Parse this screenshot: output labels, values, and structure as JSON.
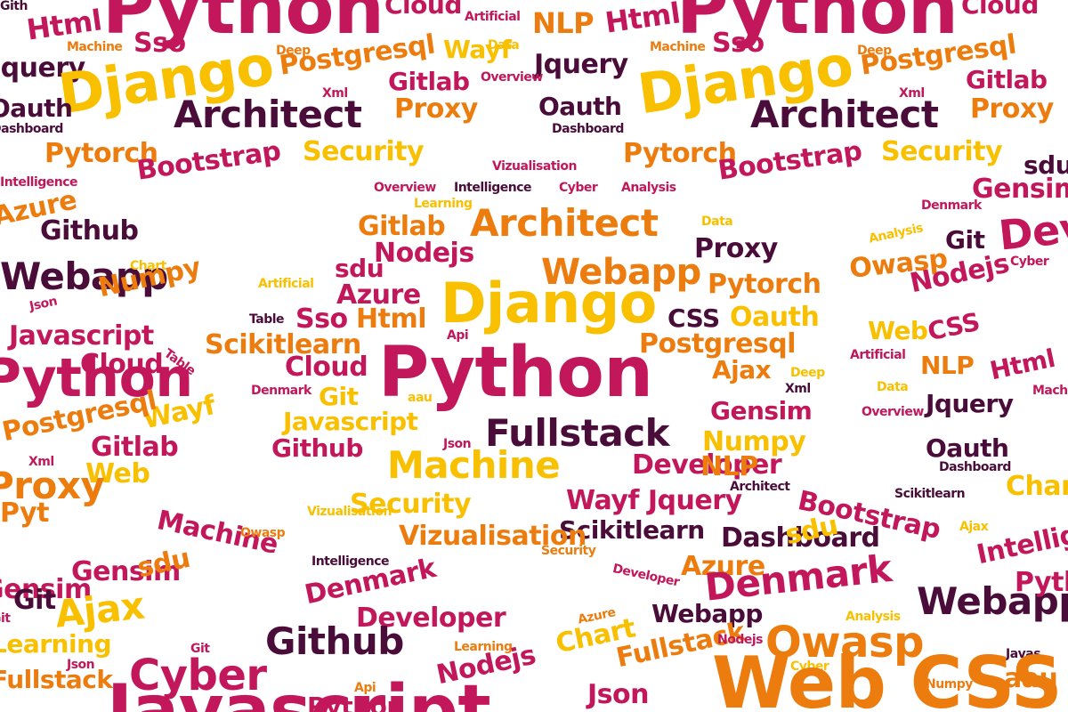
{
  "palette": {
    "crimson": "#c2185b",
    "plum": "#4a0d3a",
    "orange": "#ec7c0e",
    "amber": "#f9c000"
  },
  "words": [
    {
      "text": "Python",
      "color": "crimson"
    },
    {
      "text": "Html",
      "color": "crimson"
    },
    {
      "text": "Machine",
      "color": "orange"
    },
    {
      "text": "Sso",
      "color": "crimson"
    },
    {
      "text": "Cloud",
      "color": "crimson"
    },
    {
      "text": "Artificial",
      "color": "crimson"
    },
    {
      "text": "NLP",
      "color": "orange"
    },
    {
      "text": "Html",
      "color": "crimson"
    },
    {
      "text": "Machine",
      "color": "orange"
    },
    {
      "text": "Sso",
      "color": "crimson"
    },
    {
      "text": "Cloud",
      "color": "crimson"
    },
    {
      "text": "Python",
      "color": "crimson"
    },
    {
      "text": "Jquery",
      "color": "plum"
    },
    {
      "text": "Django",
      "color": "amber"
    },
    {
      "text": "Deep",
      "color": "orange"
    },
    {
      "text": "Postgresql",
      "color": "orange"
    },
    {
      "text": "Wayf",
      "color": "amber"
    },
    {
      "text": "Data",
      "color": "amber"
    },
    {
      "text": "Jquery",
      "color": "plum"
    },
    {
      "text": "Django",
      "color": "amber"
    },
    {
      "text": "Deep",
      "color": "orange"
    },
    {
      "text": "Postgresql",
      "color": "orange"
    },
    {
      "text": "Gitlab",
      "color": "crimson"
    },
    {
      "text": "Overview",
      "color": "crimson"
    },
    {
      "text": "Xml",
      "color": "crimson"
    },
    {
      "text": "Gitlab",
      "color": "crimson"
    },
    {
      "text": "Oauth",
      "color": "plum"
    },
    {
      "text": "Architect",
      "color": "plum"
    },
    {
      "text": "Proxy",
      "color": "orange"
    },
    {
      "text": "Oauth",
      "color": "plum"
    },
    {
      "text": "Dashboard",
      "color": "plum"
    },
    {
      "text": "Dashboard",
      "color": "plum"
    },
    {
      "text": "Xml",
      "color": "crimson"
    },
    {
      "text": "Architect",
      "color": "plum"
    },
    {
      "text": "Proxy",
      "color": "orange"
    },
    {
      "text": "Pytorch",
      "color": "orange"
    },
    {
      "text": "Security",
      "color": "amber"
    },
    {
      "text": "Pytorch",
      "color": "orange"
    },
    {
      "text": "Security",
      "color": "amber"
    },
    {
      "text": "Bootstrap",
      "color": "crimson"
    },
    {
      "text": "Bootstrap",
      "color": "crimson"
    },
    {
      "text": "sdu",
      "color": "plum"
    },
    {
      "text": "Vizualisation",
      "color": "crimson"
    },
    {
      "text": "Intelligence",
      "color": "crimson"
    },
    {
      "text": "Overview",
      "color": "crimson"
    },
    {
      "text": "Intelligence",
      "color": "plum"
    },
    {
      "text": "Cyber",
      "color": "crimson"
    },
    {
      "text": "Analysis",
      "color": "crimson"
    },
    {
      "text": "Gensim",
      "color": "crimson"
    },
    {
      "text": "Learning",
      "color": "amber"
    },
    {
      "text": "Denmark",
      "color": "crimson"
    },
    {
      "text": "Azure",
      "color": "orange"
    },
    {
      "text": "Architect",
      "color": "orange"
    },
    {
      "text": "Github",
      "color": "plum"
    },
    {
      "text": "Gitlab",
      "color": "orange"
    },
    {
      "text": "Data",
      "color": "amber"
    },
    {
      "text": "Developer",
      "color": "crimson"
    },
    {
      "text": "Nodejs",
      "color": "crimson"
    },
    {
      "text": "Proxy",
      "color": "plum"
    },
    {
      "text": "Git",
      "color": "plum"
    },
    {
      "text": "Analysis",
      "color": "amber"
    },
    {
      "text": "Webapp",
      "color": "plum"
    },
    {
      "text": "sdu",
      "color": "crimson"
    },
    {
      "text": "Webapp",
      "color": "orange"
    },
    {
      "text": "Chart",
      "color": "amber"
    },
    {
      "text": "Owasp",
      "color": "orange"
    },
    {
      "text": "Cyber",
      "color": "crimson"
    },
    {
      "text": "Nodejs",
      "color": "crimson"
    },
    {
      "text": "Numpy",
      "color": "orange"
    },
    {
      "text": "Artificial",
      "color": "amber"
    },
    {
      "text": "Azure",
      "color": "crimson"
    },
    {
      "text": "Pytorch",
      "color": "orange"
    },
    {
      "text": "Django",
      "color": "amber"
    },
    {
      "text": "Json",
      "color": "crimson"
    },
    {
      "text": "Table",
      "color": "plum"
    },
    {
      "text": "Sso",
      "color": "crimson"
    },
    {
      "text": "Html",
      "color": "orange"
    },
    {
      "text": "CSS",
      "color": "plum"
    },
    {
      "text": "Oauth",
      "color": "amber"
    },
    {
      "text": "Web",
      "color": "amber"
    },
    {
      "text": "CSS",
      "color": "crimson"
    },
    {
      "text": "Javascript",
      "color": "crimson"
    },
    {
      "text": "Scikitlearn",
      "color": "orange"
    },
    {
      "text": "Api",
      "color": "crimson"
    },
    {
      "text": "Postgresql",
      "color": "orange"
    },
    {
      "text": "Artificial",
      "color": "crimson"
    },
    {
      "text": "NLP",
      "color": "orange"
    },
    {
      "text": "Html",
      "color": "crimson"
    },
    {
      "text": "Table",
      "color": "crimson"
    },
    {
      "text": "Cloud",
      "color": "crimson"
    },
    {
      "text": "Cloud",
      "color": "crimson"
    },
    {
      "text": "Python",
      "color": "crimson"
    },
    {
      "text": "Ajax",
      "color": "orange"
    },
    {
      "text": "Deep",
      "color": "amber"
    },
    {
      "text": "Python",
      "color": "crimson"
    },
    {
      "text": "Denmark",
      "color": "crimson"
    },
    {
      "text": "Git",
      "color": "amber"
    },
    {
      "text": "Xml",
      "color": "plum"
    },
    {
      "text": "Data",
      "color": "amber"
    },
    {
      "text": "Jquery",
      "color": "plum"
    },
    {
      "text": "Mach",
      "color": "crimson"
    },
    {
      "text": "aau",
      "color": "amber"
    },
    {
      "text": "Gensim",
      "color": "crimson"
    },
    {
      "text": "Javascript",
      "color": "amber"
    },
    {
      "text": "Wayf",
      "color": "amber"
    },
    {
      "text": "Overview",
      "color": "crimson"
    },
    {
      "text": "Postgresql",
      "color": "orange"
    },
    {
      "text": "Fullstack",
      "color": "plum"
    },
    {
      "text": "Oauth",
      "color": "plum"
    },
    {
      "text": "Gitlab",
      "color": "crimson"
    },
    {
      "text": "Github",
      "color": "crimson"
    },
    {
      "text": "Json",
      "color": "crimson"
    },
    {
      "text": "Numpy",
      "color": "amber"
    },
    {
      "text": "Dashboard",
      "color": "plum"
    },
    {
      "text": "Xml",
      "color": "crimson"
    },
    {
      "text": "Machine",
      "color": "amber"
    },
    {
      "text": "Developer",
      "color": "crimson"
    },
    {
      "text": "NLP",
      "color": "orange"
    },
    {
      "text": "Web",
      "color": "amber"
    },
    {
      "text": "Proxy",
      "color": "orange"
    },
    {
      "text": "Architect",
      "color": "plum"
    },
    {
      "text": "Chart",
      "color": "amber"
    },
    {
      "text": "Pyt",
      "color": "orange"
    },
    {
      "text": "Security",
      "color": "amber"
    },
    {
      "text": "Wayf Jquery",
      "color": "crimson"
    },
    {
      "text": "Bootstrap",
      "color": "crimson"
    },
    {
      "text": "Scikitlearn",
      "color": "plum"
    },
    {
      "text": "Vizualisation",
      "color": "amber"
    },
    {
      "text": "Machine",
      "color": "crimson"
    },
    {
      "text": "Scikitlearn",
      "color": "plum"
    },
    {
      "text": "Owasp",
      "color": "orange"
    },
    {
      "text": "Vizualisation",
      "color": "orange"
    },
    {
      "text": "Security",
      "color": "orange"
    },
    {
      "text": "Dashboard",
      "color": "plum"
    },
    {
      "text": "sdu",
      "color": "amber"
    },
    {
      "text": "Ajax",
      "color": "amber"
    },
    {
      "text": "Intelligence",
      "color": "plum"
    },
    {
      "text": "Intelligence",
      "color": "crimson"
    },
    {
      "text": "Azure",
      "color": "orange"
    },
    {
      "text": "Gensim",
      "color": "crimson"
    },
    {
      "text": "Git",
      "color": "plum"
    },
    {
      "text": "Gensim",
      "color": "crimson"
    },
    {
      "text": "sdu",
      "color": "orange"
    },
    {
      "text": "Ajax",
      "color": "amber"
    },
    {
      "text": "Developer",
      "color": "crimson"
    },
    {
      "text": "Git",
      "color": "crimson"
    },
    {
      "text": "Denmark",
      "color": "crimson"
    },
    {
      "text": "Denmark",
      "color": "crimson"
    },
    {
      "text": "Developer",
      "color": "crimson"
    },
    {
      "text": "Azure",
      "color": "orange"
    },
    {
      "text": "Github",
      "color": "plum"
    },
    {
      "text": "Analysis",
      "color": "amber"
    },
    {
      "text": "Webapp",
      "color": "plum"
    },
    {
      "text": "Learning",
      "color": "amber"
    },
    {
      "text": "Webapp",
      "color": "plum"
    },
    {
      "text": "Git",
      "color": "crimson"
    },
    {
      "text": "Learning",
      "color": "orange"
    },
    {
      "text": "Chart",
      "color": "amber"
    },
    {
      "text": "Owasp",
      "color": "orange"
    },
    {
      "text": "Fullstack",
      "color": "orange"
    },
    {
      "text": "Nodejs",
      "color": "crimson"
    },
    {
      "text": "Cyber",
      "color": "crimson"
    },
    {
      "text": "Fullstack",
      "color": "orange"
    },
    {
      "text": "Json",
      "color": "crimson"
    },
    {
      "text": "Nodejs",
      "color": "crimson"
    },
    {
      "text": "Cyber",
      "color": "amber"
    },
    {
      "text": "Numpy",
      "color": "orange"
    },
    {
      "text": "aau",
      "color": "orange"
    },
    {
      "text": "Api",
      "color": "orange"
    },
    {
      "text": "Javas",
      "color": "plum"
    },
    {
      "text": "Json",
      "color": "crimson"
    },
    {
      "text": "Web CSS",
      "color": "orange"
    },
    {
      "text": "Python",
      "color": "crimson"
    },
    {
      "text": "Javascript",
      "color": "crimson"
    },
    {
      "text": "Python",
      "color": "crimson"
    },
    {
      "text": "Gith",
      "color": "plum"
    }
  ]
}
